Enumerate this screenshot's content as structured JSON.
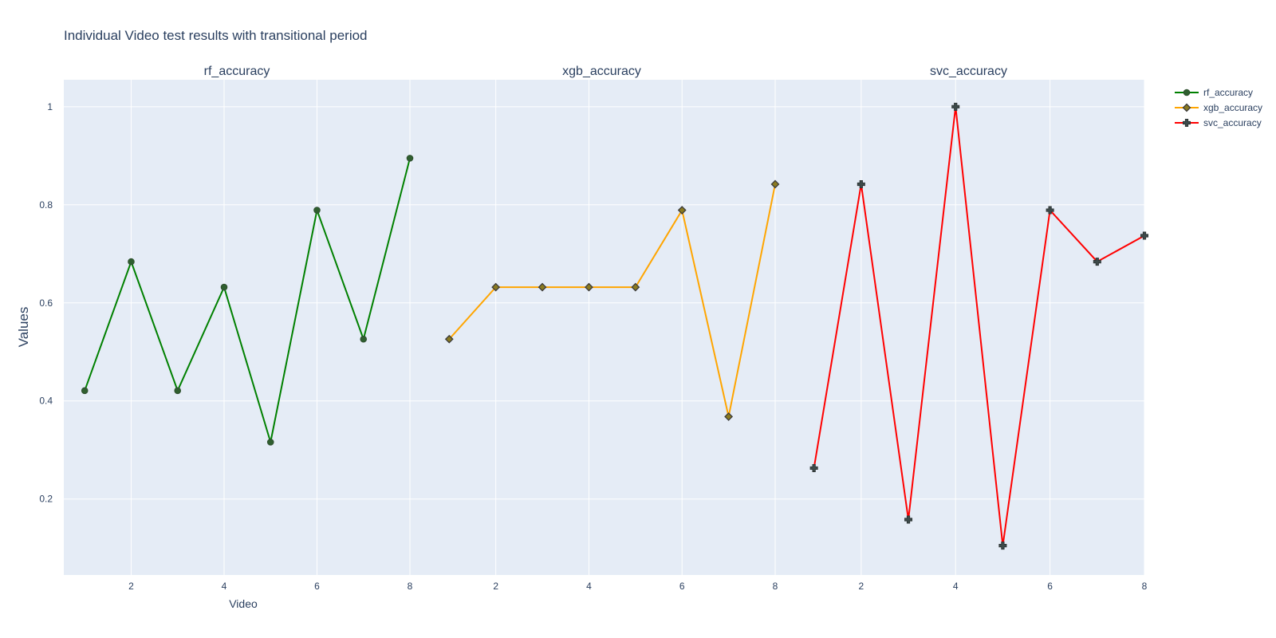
{
  "chart_data": {
    "type": "line",
    "title": "Individual Video test results with transitional period",
    "xlabel": "Video",
    "ylabel": "Values",
    "x_range": [
      0.55,
      8.0
    ],
    "ylim": [
      0.045,
      1.055
    ],
    "y_ticks": [
      0.2,
      0.4,
      0.6,
      0.8,
      1
    ],
    "y_tick_labels": [
      "0.2",
      "0.4",
      "0.6",
      "0.8",
      "1"
    ],
    "x_ticks": [
      2,
      4,
      6,
      8
    ],
    "x_tick_labels": [
      "2",
      "4",
      "6",
      "8"
    ],
    "grid": true,
    "legend_position": "top-right",
    "x": [
      1,
      2,
      3,
      4,
      5,
      6,
      7,
      8
    ],
    "series": [
      {
        "name": "rf_accuracy",
        "subplot_title": "rf_accuracy",
        "color": "#008000",
        "marker": "circle",
        "marker_color": "#2f5f2f",
        "values": [
          0.421,
          0.684,
          0.421,
          0.632,
          0.316,
          0.789,
          0.526,
          0.895
        ]
      },
      {
        "name": "xgb_accuracy",
        "subplot_title": "xgb_accuracy",
        "color": "#FFA500",
        "marker": "diamond",
        "marker_color": "#8a7a20",
        "values": [
          0.526,
          0.632,
          0.632,
          0.632,
          0.632,
          0.789,
          0.368,
          0.842
        ]
      },
      {
        "name": "svc_accuracy",
        "subplot_title": "svc_accuracy",
        "color": "#FF0000",
        "marker": "cross",
        "marker_color": "#3d4a4a",
        "values": [
          0.263,
          0.842,
          0.158,
          1.0,
          0.105,
          0.789,
          0.684,
          0.737
        ]
      }
    ]
  }
}
